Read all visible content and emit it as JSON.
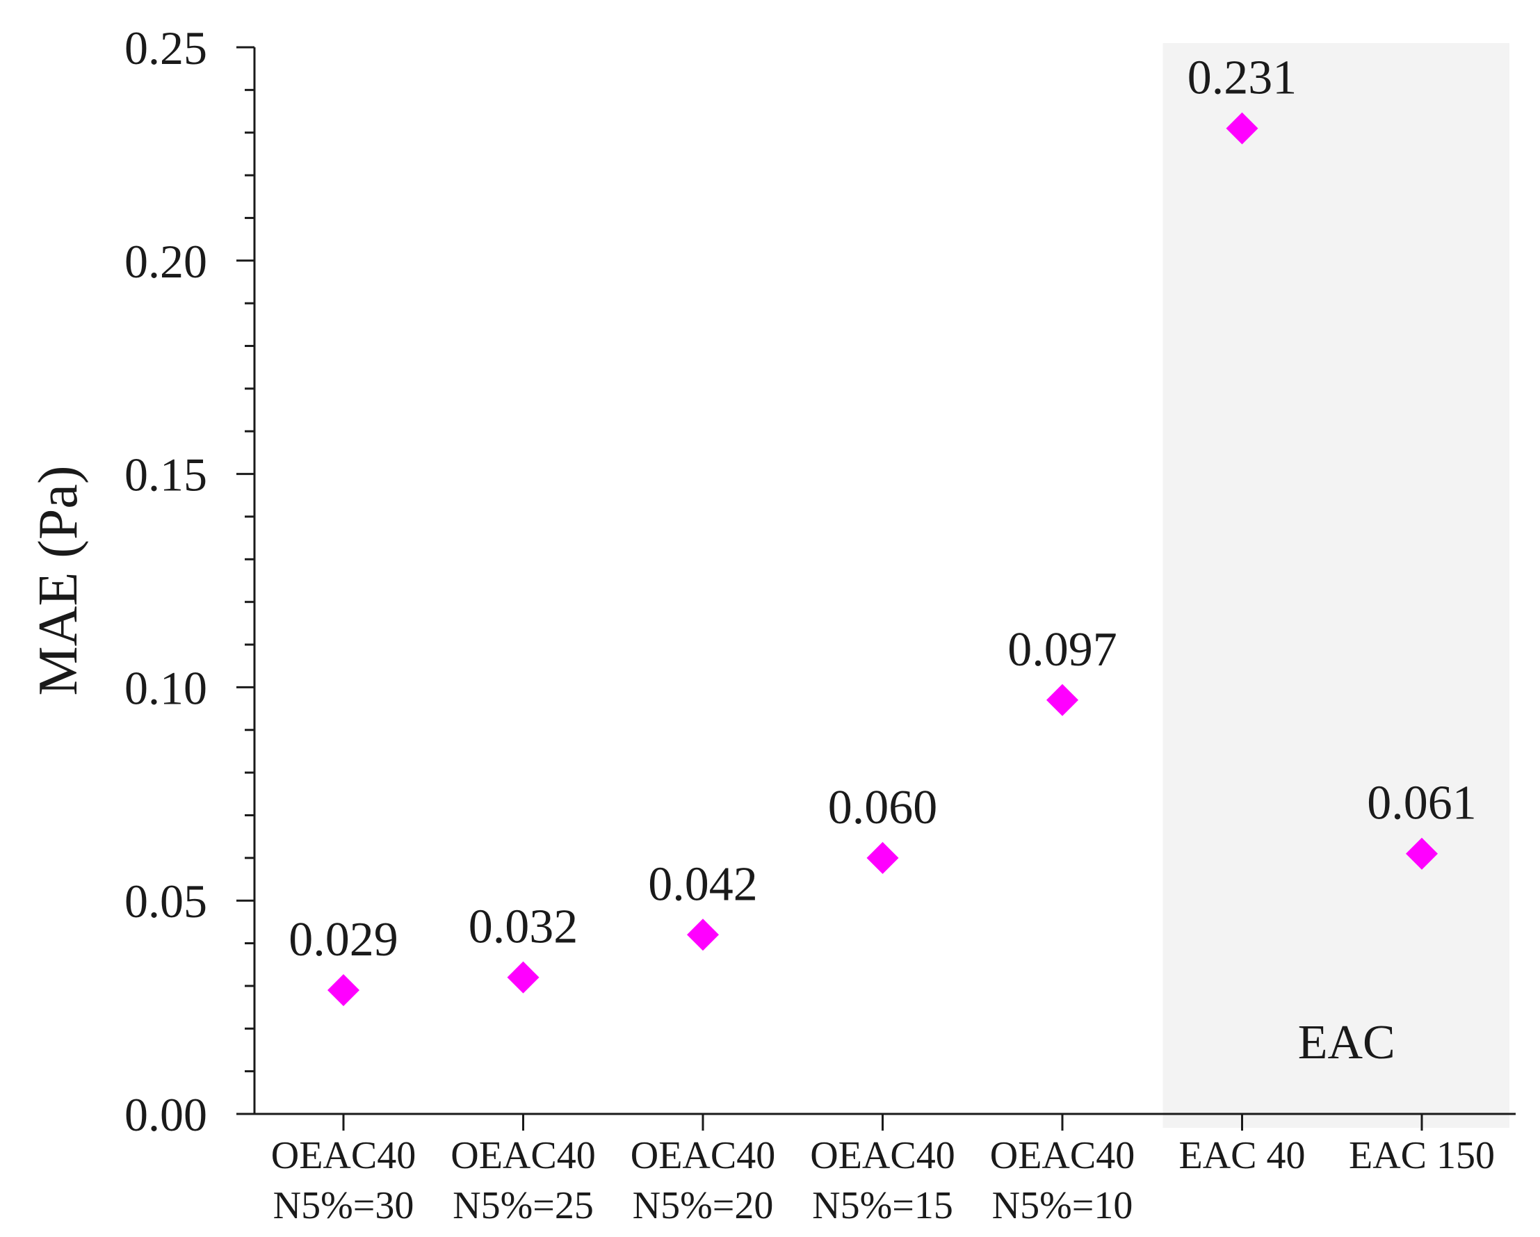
{
  "chart_data": {
    "type": "scatter",
    "title": "",
    "xlabel": "",
    "ylabel": "MAE (Pa)",
    "ylim": [
      0,
      0.25
    ],
    "y_ticks": [
      "0.00",
      "0.05",
      "0.10",
      "0.15",
      "0.20",
      "0.25"
    ],
    "grid": false,
    "legend": "none",
    "marker": "diamond",
    "marker_color": "#ff00ff",
    "highlight_region": {
      "label": "EAC",
      "categories": [
        "EAC 40",
        "EAC 150"
      ],
      "color": "#f3f3f3"
    },
    "categories": [
      {
        "line1": "OEAC40",
        "line2": "N5%=30"
      },
      {
        "line1": "OEAC40",
        "line2": "N5%=25"
      },
      {
        "line1": "OEAC40",
        "line2": "N5%=20"
      },
      {
        "line1": "OEAC40",
        "line2": "N5%=15"
      },
      {
        "line1": "OEAC40",
        "line2": "N5%=10"
      },
      {
        "line1": "EAC 40",
        "line2": ""
      },
      {
        "line1": "EAC 150",
        "line2": ""
      }
    ],
    "values": [
      0.029,
      0.032,
      0.042,
      0.06,
      0.097,
      0.231,
      0.061
    ],
    "data_labels": [
      "0.029",
      "0.032",
      "0.042",
      "0.060",
      "0.097",
      "0.231",
      "0.061"
    ]
  }
}
